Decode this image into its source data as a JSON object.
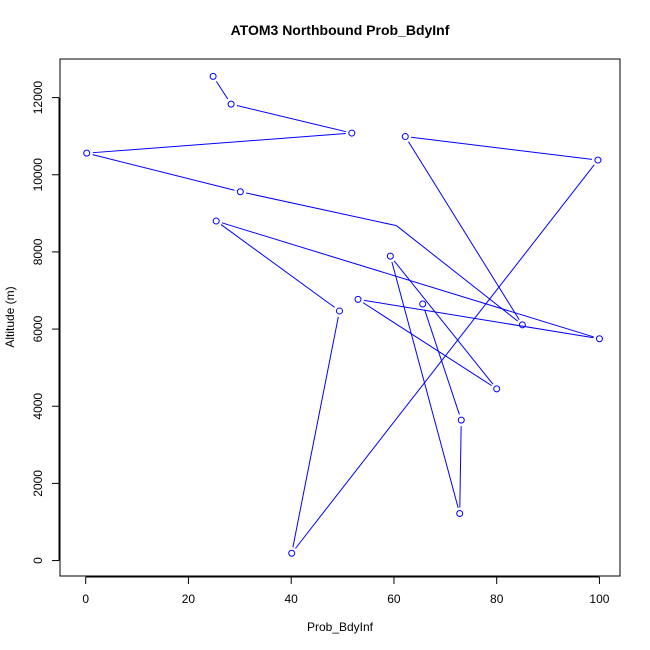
{
  "chart_data": {
    "type": "line",
    "title": "ATOM3 Northbound Prob_BdyInf",
    "xlabel": "Prob_BdyInf",
    "ylabel": "Altitude (m)",
    "xlim": [
      -5,
      104
    ],
    "ylim": [
      -400,
      13000
    ],
    "x_ticks": [
      0,
      20,
      40,
      60,
      80,
      100
    ],
    "y_ticks": [
      0,
      2000,
      4000,
      6000,
      8000,
      10000,
      12000
    ],
    "grid": false,
    "legend": "none",
    "marker": "open-circle",
    "series": [
      {
        "color": "#0000ff",
        "points": [
          {
            "x": 24.8,
            "y": 12550
          },
          {
            "x": 28.3,
            "y": 11830
          },
          {
            "x": 51.8,
            "y": 11080
          },
          {
            "x": 0.2,
            "y": 10560
          },
          {
            "x": 30.1,
            "y": 9560
          },
          {
            "x": 60.5,
            "y": 8680,
            "marker": false
          },
          {
            "x": 85.0,
            "y": 6110
          },
          {
            "x": 62.2,
            "y": 10990
          },
          {
            "x": 99.7,
            "y": 10380
          },
          {
            "x": 40.1,
            "y": 190
          },
          {
            "x": 49.4,
            "y": 6470
          },
          {
            "x": 25.4,
            "y": 8800
          },
          {
            "x": 100.0,
            "y": 5750
          },
          {
            "x": 53.0,
            "y": 6770
          },
          {
            "x": 80.0,
            "y": 4450
          },
          {
            "x": 59.3,
            "y": 7890
          },
          {
            "x": 72.8,
            "y": 1220
          },
          {
            "x": 73.1,
            "y": 3640
          },
          {
            "x": 65.6,
            "y": 6650
          }
        ]
      }
    ]
  }
}
